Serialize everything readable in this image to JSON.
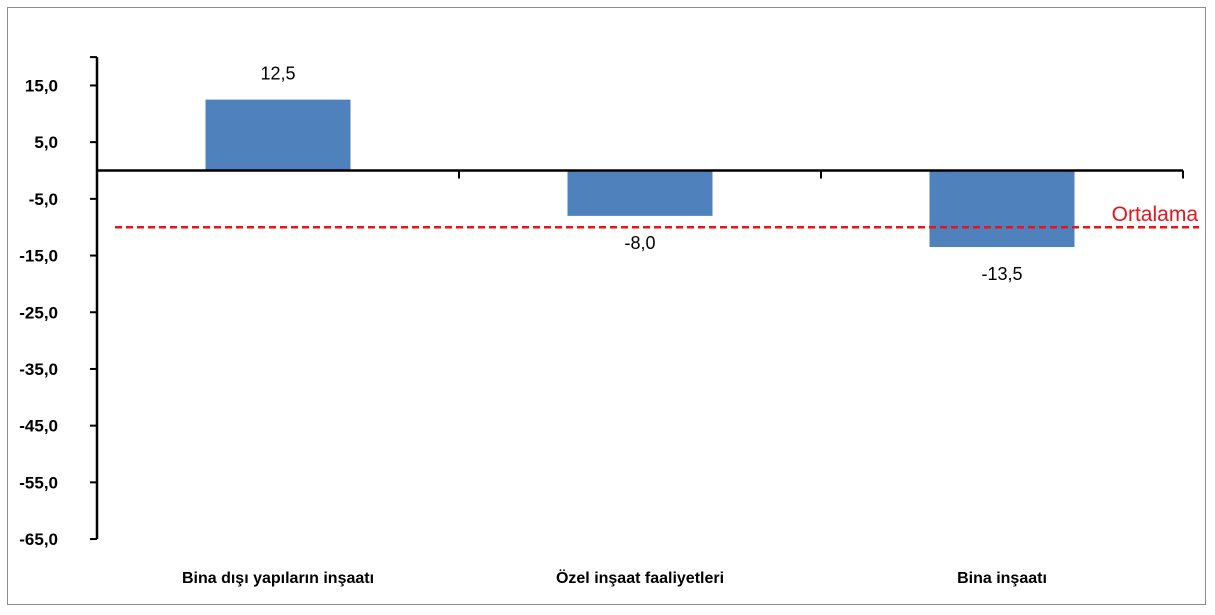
{
  "chart_data": {
    "type": "bar",
    "categories": [
      "Bina dışı yapıların inşaatı",
      "Özel inşaat faaliyetleri",
      "Bina inşaatı"
    ],
    "values": [
      12.5,
      -8.0,
      -13.5
    ],
    "value_labels": [
      "12,5",
      "-8,0",
      "-13,5"
    ],
    "yticks": [
      15,
      5,
      -5,
      -15,
      -25,
      -35,
      -45,
      -55,
      -65
    ],
    "ytick_labels": [
      "15,0",
      "5,0",
      "-5,0",
      "-15,0",
      "-25,0",
      "-35,0",
      "-45,0",
      "-55,0",
      "-65,0"
    ],
    "ylim": [
      -65,
      20
    ],
    "reference_line": {
      "label": "Ortalama",
      "value": -10,
      "color": "#e8141b",
      "style": "dashed"
    },
    "bar_color": "#4f81bd",
    "title": "",
    "xlabel": "",
    "ylabel": "",
    "grid": false,
    "legend": "none"
  }
}
